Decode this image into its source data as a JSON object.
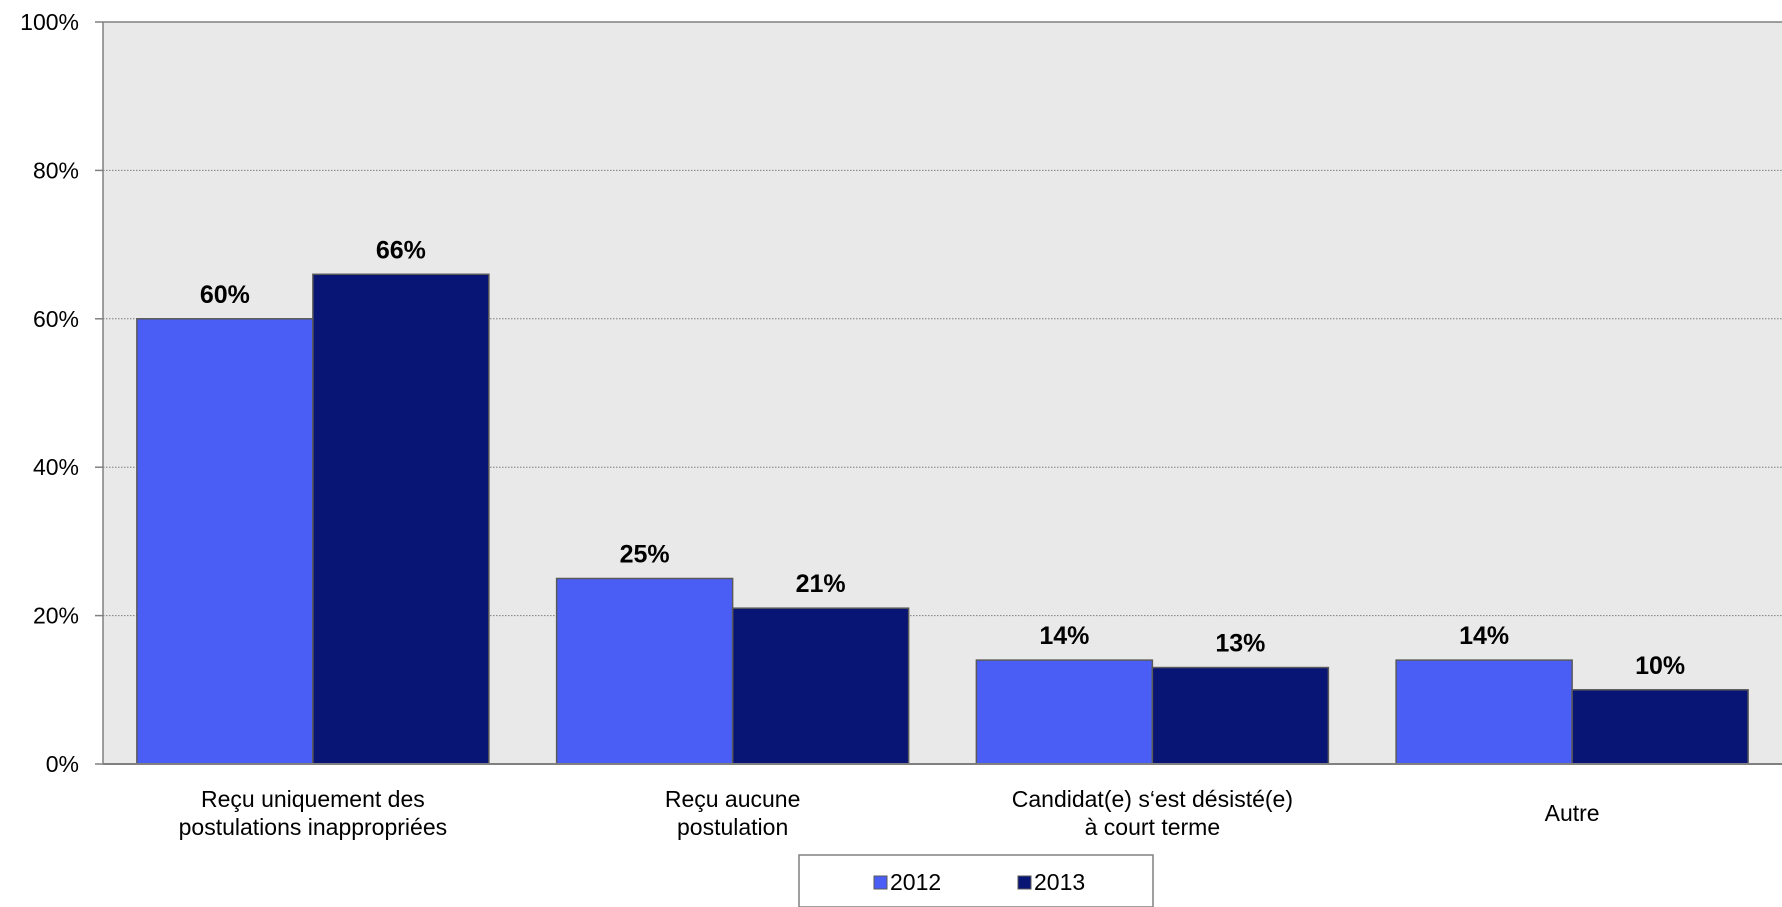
{
  "chart_data": {
    "type": "bar",
    "categories": [
      [
        "Reçu uniquement des",
        "postulations inappropriées"
      ],
      [
        "Reçu aucune",
        "postulation"
      ],
      [
        "Candidat(e) s‘est désisté(e)",
        "à court terme"
      ],
      [
        "Autre"
      ]
    ],
    "series": [
      {
        "name": "2012",
        "values": [
          60,
          25,
          14,
          14
        ],
        "labels": [
          "60%",
          "25%",
          "14%",
          "14%"
        ],
        "color": "#4a5ef5"
      },
      {
        "name": "2013",
        "values": [
          66,
          21,
          13,
          10
        ],
        "labels": [
          "66%",
          "21%",
          "13%",
          "10%"
        ],
        "color": "#081575"
      }
    ],
    "y_ticks": [
      "0%",
      "20%",
      "40%",
      "60%",
      "80%",
      "100%"
    ],
    "ylim": [
      0,
      100
    ],
    "grid": true,
    "plot_background": "#e9e9e9",
    "legend_position": "bottom-center"
  }
}
